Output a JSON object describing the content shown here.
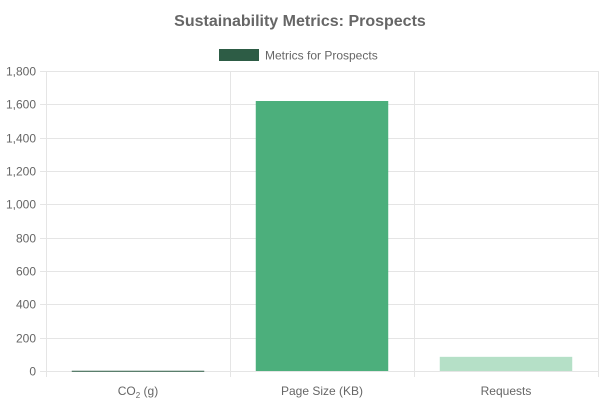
{
  "chart_data": {
    "type": "bar",
    "title": "Sustainability Metrics: Prospects",
    "legend": {
      "position": "top",
      "label": "Metrics for Prospects",
      "color": "#2d5c45"
    },
    "categories": [
      "CO2 (g)",
      "Page Size (KB)",
      "Requests"
    ],
    "categories_display": {
      "co2": {
        "main": "CO",
        "sub": "2",
        "suffix": " (g)"
      }
    },
    "series": [
      {
        "name": "Metrics for Prospects",
        "values": [
          1.5,
          1620,
          85
        ],
        "colors": [
          "#2d5c45",
          "#4caf7c",
          "#b5e0c7"
        ]
      }
    ],
    "ylim": [
      0,
      1800
    ],
    "yticks": [
      0,
      200,
      400,
      600,
      800,
      1000,
      1200,
      1400,
      1600,
      1800
    ],
    "ytick_labels": [
      "0",
      "200",
      "400",
      "600",
      "800",
      "1,000",
      "1,200",
      "1,400",
      "1,600",
      "1,800"
    ],
    "grid": true
  }
}
